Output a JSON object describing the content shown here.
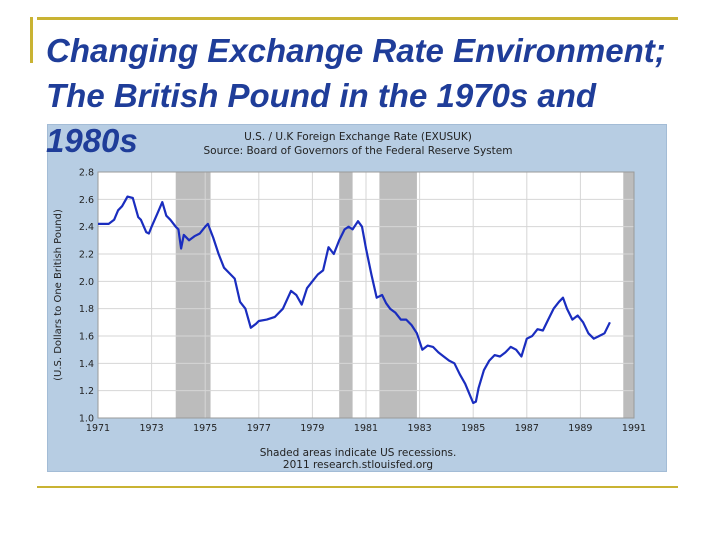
{
  "slide": {
    "title": "Changing Exchange Rate Environment; The British Pound in the 1970s and 1980s"
  },
  "colors": {
    "title": "#1f3d99",
    "rule": "#c9b333",
    "panel": "#b7cde3",
    "line": "#1a2dbf",
    "recession": "#bcbcbc"
  },
  "chart_data": {
    "type": "line",
    "title": "U.S. / U.K Foreign Exchange Rate (EXUSUK)",
    "subtitle": "Source: Board of Governors of the Federal Reserve System",
    "ylabel": "(U.S. Dollars to One British Pound)",
    "footer": [
      "Shaded areas indicate US recessions.",
      "2011 research.stlouisfed.org"
    ],
    "xlim": [
      1971.0,
      1991.0
    ],
    "ylim": [
      1.0,
      2.8
    ],
    "x_ticks": [
      "1971",
      "1973",
      "1975",
      "1977",
      "1979",
      "1981",
      "1983",
      "1985",
      "1987",
      "1989",
      "1991"
    ],
    "y_ticks": [
      "1.0",
      "1.2",
      "1.4",
      "1.6",
      "1.8",
      "2.0",
      "2.2",
      "2.4",
      "2.6",
      "2.8"
    ],
    "grid": true,
    "recessions": [
      [
        1973.9,
        1975.2
      ],
      [
        1980.0,
        1980.5
      ],
      [
        1981.5,
        1982.9
      ],
      [
        1990.6,
        1991.0
      ]
    ],
    "series": [
      {
        "x": [
          1971.0,
          1971.4,
          1971.6,
          1971.75,
          1971.9,
          1972.1,
          1972.3,
          1972.5,
          1972.6,
          1972.8,
          1972.9,
          1973.0,
          1973.2,
          1973.4,
          1973.55,
          1973.7,
          1973.9,
          1974.0,
          1974.1,
          1974.2,
          1974.4,
          1974.6,
          1974.8,
          1975.0,
          1975.1,
          1975.3,
          1975.5,
          1975.7,
          1975.9,
          1976.1,
          1976.3,
          1976.5,
          1976.7,
          1976.9,
          1977.0,
          1977.3,
          1977.6,
          1977.9,
          1978.2,
          1978.4,
          1978.6,
          1978.8,
          1979.0,
          1979.2,
          1979.4,
          1979.6,
          1979.8,
          1980.0,
          1980.2,
          1980.35,
          1980.5,
          1980.7,
          1980.85,
          1981.0,
          1981.2,
          1981.4,
          1981.6,
          1981.75,
          1981.9,
          1982.1,
          1982.3,
          1982.5,
          1982.7,
          1982.9,
          1983.1,
          1983.3,
          1983.5,
          1983.7,
          1983.9,
          1984.1,
          1984.3,
          1984.5,
          1984.7,
          1984.85,
          1985.0,
          1985.1,
          1985.2,
          1985.4,
          1985.6,
          1985.8,
          1986.0,
          1986.2,
          1986.4,
          1986.6,
          1986.8,
          1987.0,
          1987.2,
          1987.4,
          1987.6,
          1987.8,
          1988.0,
          1988.2,
          1988.35,
          1988.5,
          1988.7,
          1988.9,
          1989.1,
          1989.3,
          1989.5,
          1989.7,
          1989.9,
          1990.1
        ],
        "y": [
          2.42,
          2.42,
          2.45,
          2.52,
          2.55,
          2.62,
          2.61,
          2.47,
          2.45,
          2.36,
          2.35,
          2.4,
          2.49,
          2.58,
          2.48,
          2.45,
          2.4,
          2.38,
          2.24,
          2.34,
          2.3,
          2.33,
          2.35,
          2.4,
          2.42,
          2.32,
          2.2,
          2.1,
          2.06,
          2.02,
          1.85,
          1.8,
          1.66,
          1.69,
          1.71,
          1.72,
          1.74,
          1.8,
          1.93,
          1.9,
          1.83,
          1.95,
          2.0,
          2.05,
          2.08,
          2.25,
          2.2,
          2.3,
          2.38,
          2.4,
          2.38,
          2.44,
          2.4,
          2.24,
          2.05,
          1.88,
          1.9,
          1.84,
          1.8,
          1.77,
          1.72,
          1.72,
          1.68,
          1.62,
          1.5,
          1.53,
          1.52,
          1.48,
          1.45,
          1.42,
          1.4,
          1.32,
          1.25,
          1.18,
          1.11,
          1.12,
          1.22,
          1.35,
          1.42,
          1.46,
          1.45,
          1.48,
          1.52,
          1.5,
          1.45,
          1.58,
          1.6,
          1.65,
          1.64,
          1.72,
          1.8,
          1.85,
          1.88,
          1.8,
          1.72,
          1.75,
          1.7,
          1.62,
          1.58,
          1.6,
          1.62,
          1.7
        ]
      }
    ]
  }
}
